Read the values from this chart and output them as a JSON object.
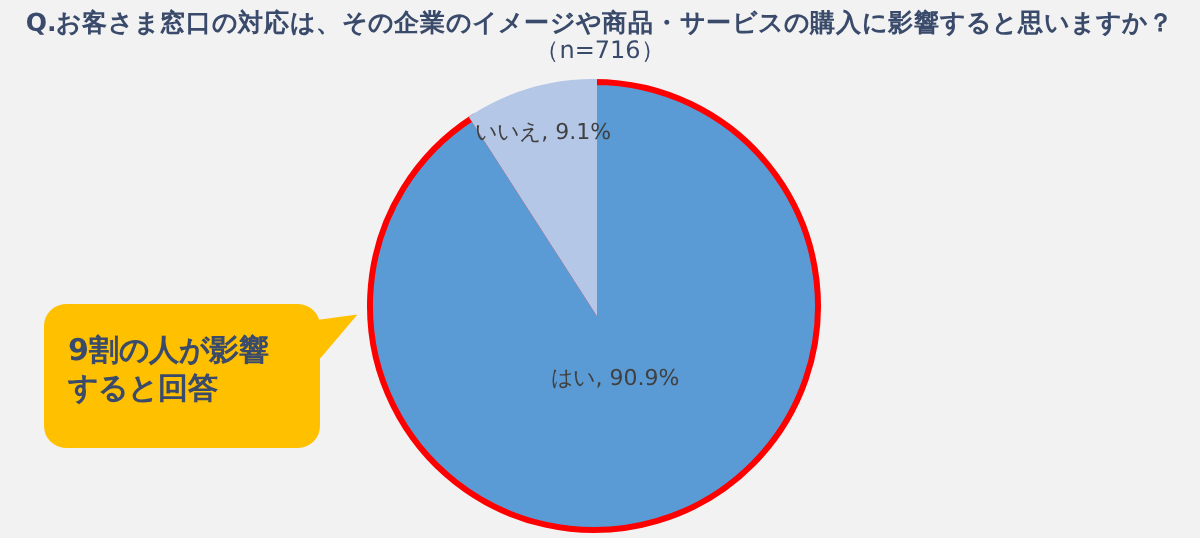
{
  "chart_data": {
    "type": "pie",
    "title": "Q.お客さま窓口の対応は、その企業のイメージや商品・サービスの購入に影響すると思いますか？",
    "subtitle": "（n=716）",
    "categories": [
      "はい",
      "いいえ"
    ],
    "values": [
      90.9,
      9.1
    ],
    "colors": [
      "#5b9bd5",
      "#b4c7e7"
    ],
    "value_labels": [
      "90.9%",
      "9.1%"
    ],
    "annotations": [
      "9割の人が影響すると回答"
    ]
  }
}
